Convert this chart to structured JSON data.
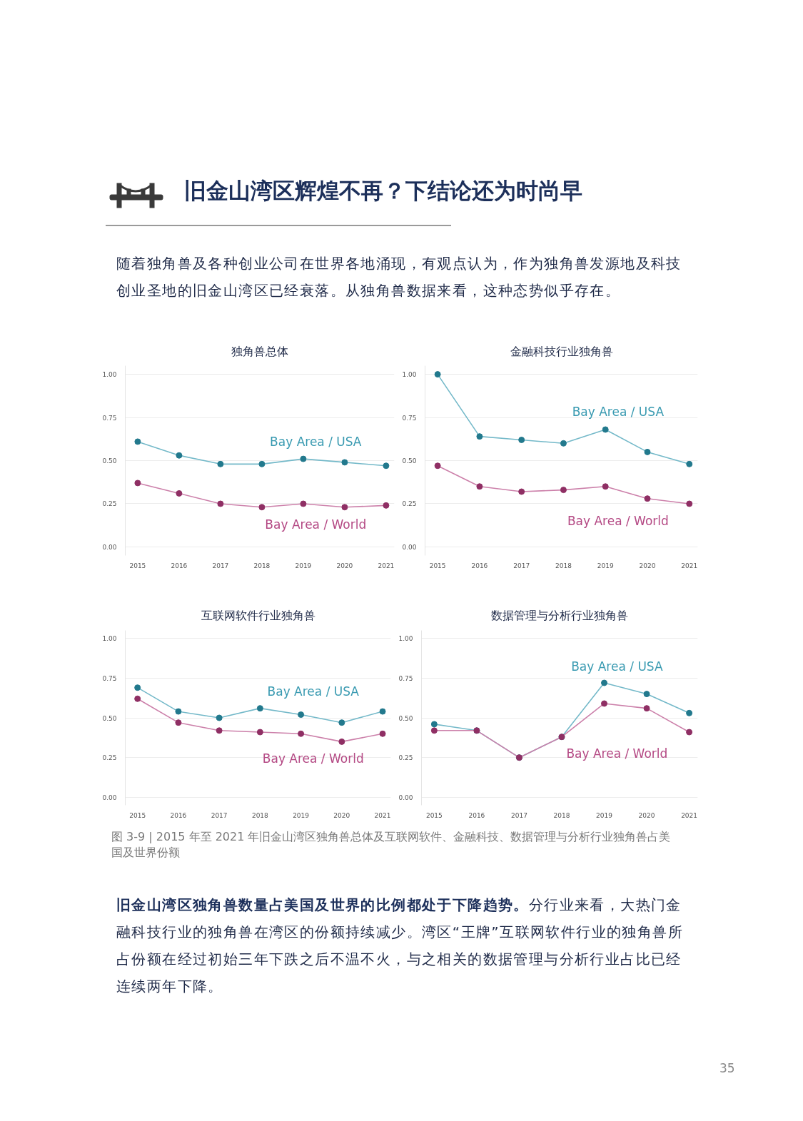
{
  "chart_data": [
    {
      "type": "other",
      "title": "旧金山湾区辉煌不再？下结论还为时尚早",
      "annotations": [
        "随着独角兽及各种创业公司在世界各地涌现，有观点认为，作为独角兽发源地及科技创业圣地的旧金山湾区已经衰落。从独角兽数据来看，这种态势似乎存在。"
      ]
    },
    {
      "type": "line",
      "title": "独角兽总体",
      "categories": [
        "2015",
        "2016",
        "2017",
        "2018",
        "2019",
        "2020",
        "2021"
      ],
      "series": [
        {
          "name": "Bay Area / USA",
          "color": "#74b9c9",
          "values": [
            0.61,
            0.53,
            0.48,
            0.48,
            0.51,
            0.49,
            0.47
          ]
        },
        {
          "name": "Bay Area / World",
          "color": "#cc80aa",
          "values": [
            0.37,
            0.31,
            0.25,
            0.23,
            0.25,
            0.23,
            0.24
          ]
        }
      ],
      "ylim": [
        -0.05,
        1.05
      ],
      "yticks": [
        {
          "value": 0,
          "label": "0.00"
        },
        {
          "value": 0.25,
          "label": "0.25"
        },
        {
          "value": 0.5,
          "label": "0.50"
        },
        {
          "value": 0.75,
          "label": "0.75"
        },
        {
          "value": 1,
          "label": "1.00"
        }
      ],
      "grid": "y",
      "marker": "circle",
      "line_style": "solid"
    },
    {
      "type": "line",
      "title": "金融科技行业独角兽",
      "categories": [
        "2015",
        "2016",
        "2017",
        "2018",
        "2019",
        "2020",
        "2021"
      ],
      "series": [
        {
          "name": "Bay Area / USA",
          "color": "#74b9c9",
          "values": [
            1.0,
            0.64,
            0.62,
            0.6,
            0.68,
            0.55,
            0.48
          ]
        },
        {
          "name": "Bay Area / World",
          "color": "#cc80aa",
          "values": [
            0.47,
            0.35,
            0.32,
            0.33,
            0.35,
            0.28,
            0.25
          ]
        }
      ],
      "ylim": [
        -0.05,
        1.05
      ],
      "yticks": [
        {
          "value": 0,
          "label": "0.00"
        },
        {
          "value": 0.25,
          "label": "0.25"
        },
        {
          "value": 0.5,
          "label": "0.50"
        },
        {
          "value": 0.75,
          "label": "0.75"
        },
        {
          "value": 1,
          "label": "1.00"
        }
      ],
      "grid": "y",
      "marker": "circle",
      "line_style": "solid"
    },
    {
      "type": "line",
      "title": "互联网软件行业独角兽",
      "categories": [
        "2015",
        "2016",
        "2017",
        "2018",
        "2019",
        "2020",
        "2021"
      ],
      "series": [
        {
          "name": "Bay Area / USA",
          "color": "#74b9c9",
          "values": [
            0.69,
            0.54,
            0.5,
            0.56,
            0.52,
            0.47,
            0.54
          ]
        },
        {
          "name": "Bay Area / World",
          "color": "#cc80aa",
          "values": [
            0.62,
            0.47,
            0.42,
            0.41,
            0.4,
            0.35,
            0.4
          ]
        }
      ],
      "ylim": [
        -0.05,
        1.05
      ],
      "yticks": [
        {
          "value": 0,
          "label": "0.00"
        },
        {
          "value": 0.25,
          "label": "0.25"
        },
        {
          "value": 0.5,
          "label": "0.50"
        },
        {
          "value": 0.75,
          "label": "0.75"
        },
        {
          "value": 1,
          "label": "1.00"
        }
      ],
      "grid": "y",
      "marker": "circle",
      "line_style": "solid"
    },
    {
      "type": "line",
      "title": "数据管理与分析行业独角兽",
      "categories": [
        "2015",
        "2016",
        "2017",
        "2018",
        "2019",
        "2020",
        "2021"
      ],
      "series": [
        {
          "name": "Bay Area / USA",
          "color": "#74b9c9",
          "values": [
            0.46,
            0.42,
            0.25,
            0.38,
            0.72,
            0.65,
            0.53
          ]
        },
        {
          "name": "Bay Area / World",
          "color": "#cc80aa",
          "values": [
            0.42,
            0.42,
            0.25,
            0.38,
            0.59,
            0.56,
            0.41
          ]
        }
      ],
      "ylim": [
        -0.05,
        1.05
      ],
      "yticks": [
        {
          "value": 0,
          "label": "0.00"
        },
        {
          "value": 0.25,
          "label": "0.25"
        },
        {
          "value": 0.5,
          "label": "0.50"
        },
        {
          "value": 0.75,
          "label": "0.75"
        },
        {
          "value": 1,
          "label": "1.00"
        }
      ],
      "grid": "y",
      "marker": "circle",
      "line_style": "solid"
    },
    {
      "type": "other",
      "annotations": [
        "图 3-9 | 2015 年至 2021 年旧金山湾区独角兽总体及互联网软件、金融科技、数据管理与分析行业独角兽占美国及世界份额",
        "旧金山湾区独角兽数量占美国及世界的比例都处于下降趋势。",
        "分行业来看，大热门金融科技行业的独角兽在湾区的份额持续减少。湾区“王牌”互联网软件行业的独角兽所占份额在经过初始三年下跌之后不温不火，与之相关的数据管理与分析行业占比已经连续两年下降。",
        "35"
      ]
    }
  ]
}
